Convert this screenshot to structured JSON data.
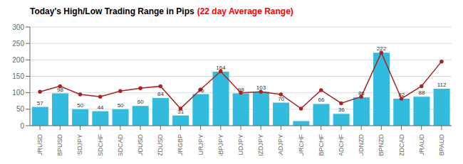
{
  "chart_data": {
    "type": "bar",
    "title": "Today's High/Low Trading Range in Pips",
    "subtitle": "(22 day Average Range)",
    "categories": [
      "EURUSD",
      "GBPUSD",
      "USDJPY",
      "USDCHF",
      "USDCAD",
      "AUDUSD",
      "NZDUSD",
      "EURGBP",
      "EURJPY",
      "GBPJPY",
      "AUDJPY",
      "NZDJPY",
      "CADJPY",
      "EURCHF",
      "GBPCHF",
      "CADCHF",
      "AUDNZD",
      "GBPNZD",
      "NZDCAD",
      "EURAUD",
      "GBPAUD"
    ],
    "series": [
      {
        "type": "bar",
        "color": "#33bbdd",
        "values": [
          57,
          98,
          50,
          44,
          50,
          60,
          84,
          31,
          96,
          164,
          98,
          103,
          70,
          14,
          66,
          36,
          86,
          222,
          82,
          88,
          112
        ],
        "data_labels": true,
        "value_labels": [
          "57",
          "98",
          "50",
          "44",
          "50",
          "60",
          "84",
          "31",
          "96",
          "164",
          "98",
          "103",
          "70",
          null,
          "66",
          "36",
          "86",
          "222",
          "82",
          "88",
          "112"
        ]
      },
      {
        "type": "line",
        "color": "#aa2222",
        "marker": "circle",
        "values": [
          103,
          120,
          95,
          88,
          105,
          114,
          120,
          52,
          110,
          165,
          100,
          103,
          95,
          52,
          108,
          68,
          88,
          222,
          82,
          120,
          195
        ]
      }
    ],
    "ylim": [
      0,
      300
    ],
    "yticks": [
      0,
      50,
      100,
      150,
      200,
      250,
      300
    ],
    "grid": true
  }
}
